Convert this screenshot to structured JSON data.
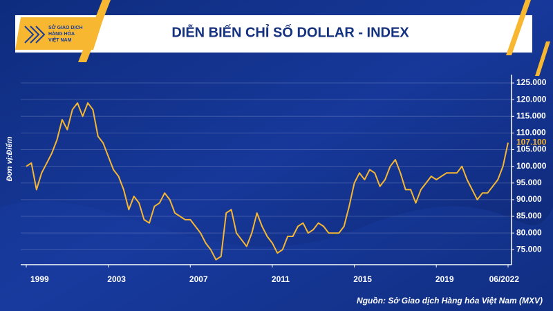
{
  "header": {
    "logo_lines": [
      "SỞ GIAO DỊCH",
      "HÀNG HÓA",
      "VIỆT NAM"
    ]
  },
  "chart_data": {
    "type": "line",
    "title": "DIỄN BIẾN CHỈ SỐ DOLLAR - INDEX",
    "y_label": "Đơn vị:Điểm",
    "source": "Nguồn: Sở Giao dịch Hàng hóa Việt Nam (MXV)",
    "x": [
      1999,
      1999.25,
      1999.5,
      1999.75,
      2000,
      2000.25,
      2000.5,
      2000.75,
      2001,
      2001.25,
      2001.5,
      2001.75,
      2002,
      2002.25,
      2002.5,
      2002.75,
      2003,
      2003.25,
      2003.5,
      2003.75,
      2004,
      2004.25,
      2004.5,
      2004.75,
      2005,
      2005.25,
      2005.5,
      2005.75,
      2006,
      2006.25,
      2006.5,
      2006.75,
      2007,
      2007.25,
      2007.5,
      2007.75,
      2008,
      2008.25,
      2008.5,
      2008.75,
      2009,
      2009.25,
      2009.5,
      2009.75,
      2010,
      2010.25,
      2010.5,
      2010.75,
      2011,
      2011.25,
      2011.5,
      2011.75,
      2012,
      2012.25,
      2012.5,
      2012.75,
      2013,
      2013.25,
      2013.5,
      2013.75,
      2014,
      2014.25,
      2014.5,
      2014.75,
      2015,
      2015.25,
      2015.5,
      2015.75,
      2016,
      2016.25,
      2016.5,
      2016.75,
      2017,
      2017.25,
      2017.5,
      2017.75,
      2018,
      2018.25,
      2018.5,
      2018.75,
      2019,
      2019.25,
      2019.5,
      2019.75,
      2020,
      2020.25,
      2020.5,
      2020.75,
      2021,
      2021.25,
      2021.5,
      2021.75,
      2022,
      2022.25,
      2022.5
    ],
    "series": [
      {
        "name": "Dollar Index",
        "color": "#f7b731",
        "values": [
          100,
          101,
          93,
          98,
          101,
          104,
          108,
          114,
          111,
          117,
          119,
          115,
          119,
          117,
          109,
          107,
          103,
          99,
          97,
          93,
          87,
          91,
          89,
          84,
          83,
          88,
          89,
          92,
          90,
          86,
          85,
          84,
          84,
          82,
          80,
          77,
          75,
          72,
          73,
          86,
          87,
          80,
          78,
          76,
          80,
          86,
          82,
          79,
          77,
          74,
          75,
          79,
          79,
          82,
          83,
          80,
          81,
          83,
          82,
          80,
          80,
          80,
          82,
          88,
          95,
          98,
          96,
          99,
          98,
          94,
          96,
          100,
          102,
          98,
          93,
          93,
          89,
          93,
          95,
          97,
          96,
          97,
          98,
          98,
          98,
          100,
          96,
          93,
          90,
          92,
          92,
          94,
          96,
          100,
          107.1
        ],
        "value_labels": [
          null,
          null,
          null,
          null,
          null,
          null,
          null,
          null,
          null,
          null,
          null,
          null,
          null,
          null,
          null,
          null,
          null,
          null,
          null,
          null,
          null,
          null,
          null,
          null,
          null,
          null,
          null,
          null,
          null,
          null,
          null,
          null,
          null,
          null,
          null,
          null,
          null,
          null,
          null,
          null,
          null,
          null,
          null,
          null,
          null,
          null,
          null,
          null,
          null,
          null,
          null,
          null,
          null,
          null,
          null,
          null,
          null,
          null,
          null,
          null,
          null,
          null,
          null,
          null,
          null,
          null,
          null,
          null,
          null,
          null,
          null,
          null,
          null,
          null,
          null,
          null,
          null,
          null,
          null,
          null,
          null,
          null,
          null,
          null,
          null,
          null,
          null,
          null,
          null,
          null,
          null,
          null,
          null,
          null,
          "107.100"
        ]
      }
    ],
    "xlim": [
      1999,
      2022.5
    ],
    "xticks": [
      1999,
      2003,
      2007,
      2011,
      2015,
      2019,
      {
        "value": 2022.5,
        "label": "06/2022"
      }
    ],
    "ylim": [
      70.5,
      127.5
    ],
    "yticks": [
      {
        "value": 75,
        "label": "75.000"
      },
      {
        "value": 80,
        "label": "80.000"
      },
      {
        "value": 85,
        "label": "85.000"
      },
      {
        "value": 90,
        "label": "90.000"
      },
      {
        "value": 95,
        "label": "95.000"
      },
      {
        "value": 100,
        "label": "100.000"
      },
      {
        "value": 105,
        "label": "105.000"
      },
      {
        "value": 110,
        "label": "110.000"
      },
      {
        "value": 115,
        "label": "115.000"
      },
      {
        "value": 120,
        "label": "120.000"
      },
      {
        "value": 125,
        "label": "125.000"
      }
    ],
    "grid": true
  }
}
